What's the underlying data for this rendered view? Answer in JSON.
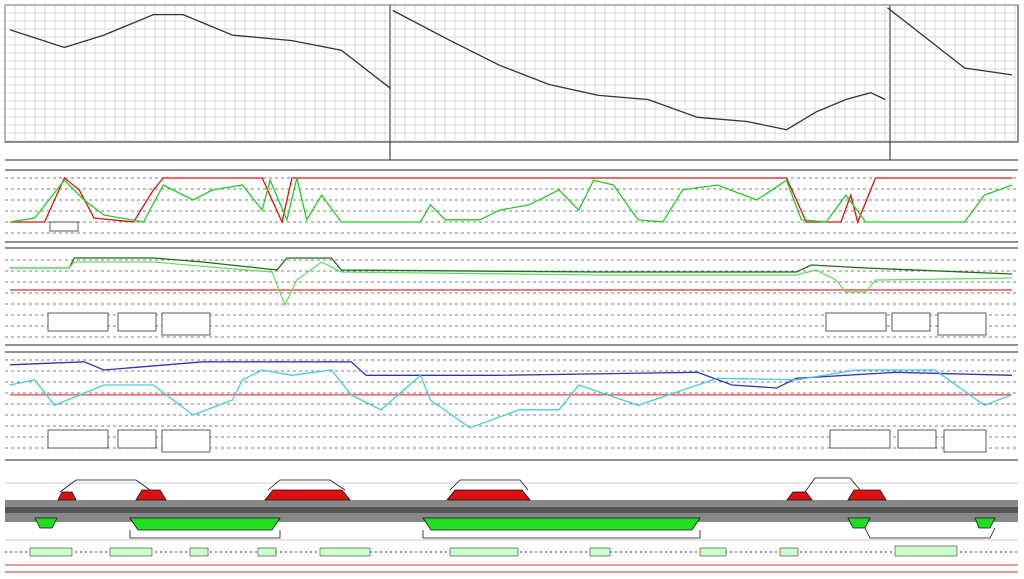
{
  "charts": [
    {
      "type": "line",
      "xlim": [
        0,
        1024
      ],
      "ylim": [
        0,
        100
      ],
      "series": [
        {
          "color": "#333333",
          "x": [
            5,
            60,
            100,
            150,
            180,
            230,
            290,
            340,
            390,
            390,
            392,
            450,
            500,
            550,
            600,
            650,
            700,
            750,
            790,
            820,
            850,
            875,
            890,
            890,
            892,
            970,
            1018
          ],
          "values": [
            82,
            69,
            78,
            93,
            93,
            78,
            74,
            67,
            39,
            null,
            96,
            74,
            56,
            42,
            34,
            31,
            18,
            15,
            9,
            22,
            31,
            36,
            31,
            null,
            98,
            54,
            49
          ]
        }
      ]
    },
    {
      "type": "line",
      "xlim": [
        0,
        1024
      ],
      "ylim": [
        0,
        100
      ],
      "series": [
        {
          "color": "#dd1111",
          "x": [
            5,
            40,
            60,
            75,
            90,
            130,
            150,
            160,
            260,
            280,
            290,
            790,
            810,
            845,
            855,
            862,
            880,
            1018
          ],
          "values": [
            0,
            0,
            100,
            73,
            9,
            0,
            73,
            100,
            100,
            0,
            100,
            100,
            0,
            0,
            61,
            0,
            100,
            100
          ]
        },
        {
          "color": "#22cc22",
          "x": [
            5,
            30,
            60,
            80,
            100,
            140,
            160,
            190,
            210,
            240,
            260,
            268,
            285,
            295,
            305,
            320,
            340,
            420,
            430,
            445,
            480,
            500,
            530,
            560,
            580,
            595,
            615,
            640,
            665,
            685,
            720,
            760,
            790,
            805,
            830,
            850,
            870,
            970,
            990,
            1018
          ],
          "values": [
            0,
            9,
            95,
            50,
            16,
            0,
            84,
            50,
            73,
            84,
            27,
            95,
            5,
            100,
            5,
            61,
            0,
            0,
            39,
            5,
            5,
            27,
            39,
            73,
            27,
            95,
            84,
            5,
            0,
            73,
            84,
            50,
            95,
            5,
            0,
            61,
            0,
            0,
            61,
            84
          ]
        }
      ]
    },
    {
      "type": "line",
      "xlim": [
        0,
        1024
      ],
      "ylim": [
        0,
        100
      ],
      "series": [
        {
          "color": "#dd3333",
          "x": [
            5,
            1018
          ],
          "values": [
            30,
            30
          ]
        },
        {
          "color": "#1f6b1f",
          "x": [
            5,
            65,
            70,
            150,
            200,
            275,
            285,
            330,
            340,
            600,
            800,
            815,
            870,
            1018
          ],
          "values": [
            74,
            74,
            94,
            94,
            86,
            70,
            94,
            94,
            70,
            66,
            66,
            80,
            74,
            62
          ]
        },
        {
          "color": "#66dd66",
          "x": [
            5,
            65,
            70,
            150,
            220,
            270,
            283,
            295,
            320,
            340,
            600,
            800,
            820,
            840,
            850,
            870,
            880,
            1018
          ],
          "values": [
            74,
            74,
            86,
            86,
            74,
            66,
            0,
            50,
            86,
            66,
            60,
            60,
            70,
            50,
            26,
            26,
            50,
            54
          ]
        }
      ]
    },
    {
      "type": "line",
      "xlim": [
        0,
        1024
      ],
      "ylim": [
        0,
        100
      ],
      "series": [
        {
          "color": "#ee5555",
          "x": [
            5,
            1018
          ],
          "values": [
            47,
            47
          ]
        },
        {
          "color": "#3333bb",
          "x": [
            5,
            80,
            100,
            200,
            350,
            365,
            500,
            700,
            735,
            780,
            800,
            900,
            1018
          ],
          "values": [
            87,
            91,
            80,
            91,
            91,
            73,
            73,
            77,
            60,
            56,
            69,
            77,
            73
          ]
        },
        {
          "color": "#44ccdd",
          "x": [
            5,
            30,
            50,
            100,
            150,
            190,
            230,
            240,
            260,
            290,
            330,
            350,
            380,
            420,
            430,
            470,
            520,
            560,
            580,
            640,
            720,
            800,
            860,
            940,
            990,
            1018
          ],
          "values": [
            60,
            67,
            33,
            60,
            60,
            20,
            40,
            67,
            80,
            73,
            80,
            47,
            27,
            73,
            40,
            3,
            27,
            27,
            60,
            33,
            69,
            67,
            80,
            80,
            33,
            47
          ]
        }
      ]
    }
  ]
}
